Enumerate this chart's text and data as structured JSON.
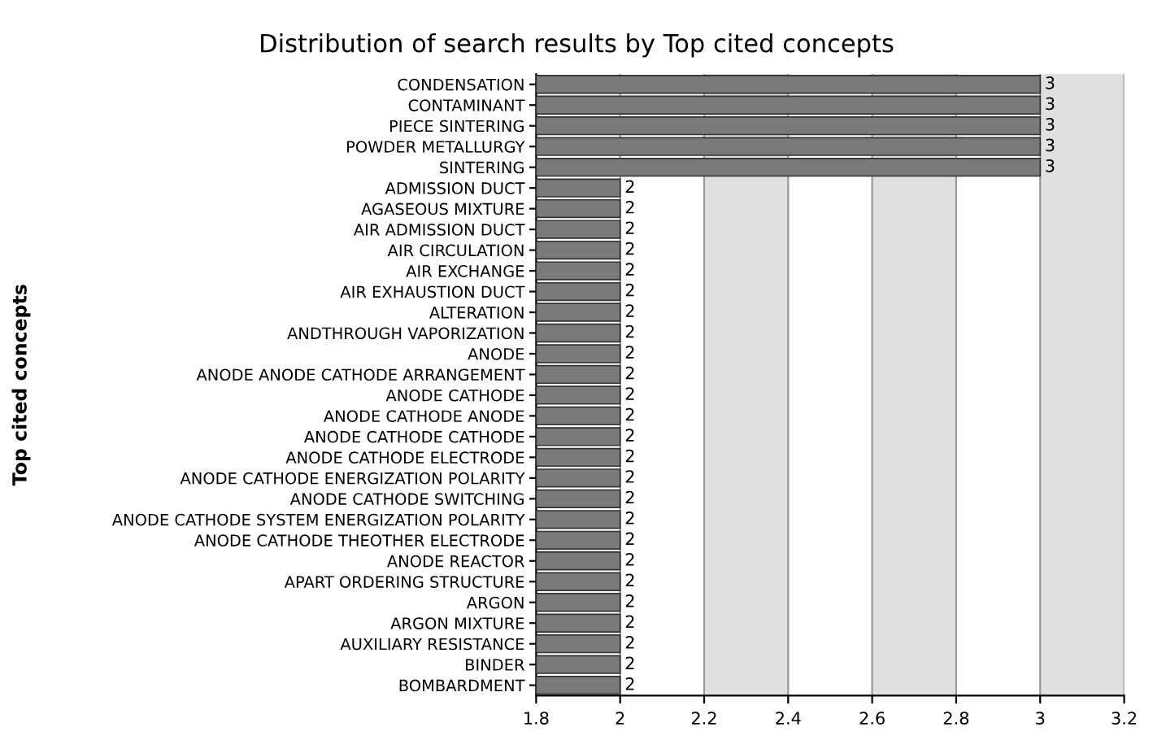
{
  "chart_data": {
    "type": "bar",
    "orientation": "horizontal",
    "title": "Distribution of search results by Top cited concepts",
    "ylabel": "Top cited concepts",
    "categories": [
      "CONDENSATION",
      "CONTAMINANT",
      "PIECE SINTERING",
      "POWDER METALLURGY",
      "SINTERING",
      "ADMISSION DUCT",
      "AGASEOUS MIXTURE",
      "AIR ADMISSION DUCT",
      "AIR CIRCULATION",
      "AIR EXCHANGE",
      "AIR EXHAUSTION DUCT",
      "ALTERATION",
      "ANDTHROUGH VAPORIZATION",
      "ANODE",
      "ANODE ANODE CATHODE ARRANGEMENT",
      "ANODE CATHODE",
      "ANODE CATHODE ANODE",
      "ANODE CATHODE CATHODE",
      "ANODE CATHODE ELECTRODE",
      "ANODE CATHODE ENERGIZATION POLARITY",
      "ANODE CATHODE SWITCHING",
      "ANODE CATHODE SYSTEM ENERGIZATION POLARITY",
      "ANODE CATHODE THEOTHER ELECTRODE",
      "ANODE REACTOR",
      "APART ORDERING STRUCTURE",
      "ARGON",
      "ARGON MIXTURE",
      "AUXILIARY RESISTANCE",
      "BINDER",
      "BOMBARDMENT"
    ],
    "values": [
      3,
      3,
      3,
      3,
      3,
      2,
      2,
      2,
      2,
      2,
      2,
      2,
      2,
      2,
      2,
      2,
      2,
      2,
      2,
      2,
      2,
      2,
      2,
      2,
      2,
      2,
      2,
      2,
      2,
      2
    ],
    "color": "#7a7a7a",
    "data_labels": true,
    "xlim": [
      1.8,
      3.2
    ],
    "xticks": [
      1.8,
      2,
      2.2,
      2.4,
      2.6,
      2.8,
      3,
      3.2
    ],
    "grid": "x",
    "bands": [
      {
        "axis": "x",
        "from": 2.2,
        "to": 2.4,
        "color": "#e0e0e0"
      },
      {
        "axis": "x",
        "from": 2.6,
        "to": 2.8,
        "color": "#e0e0e0"
      },
      {
        "axis": "x",
        "from": 3,
        "to": 3.2,
        "color": "#e0e0e0"
      }
    ]
  }
}
